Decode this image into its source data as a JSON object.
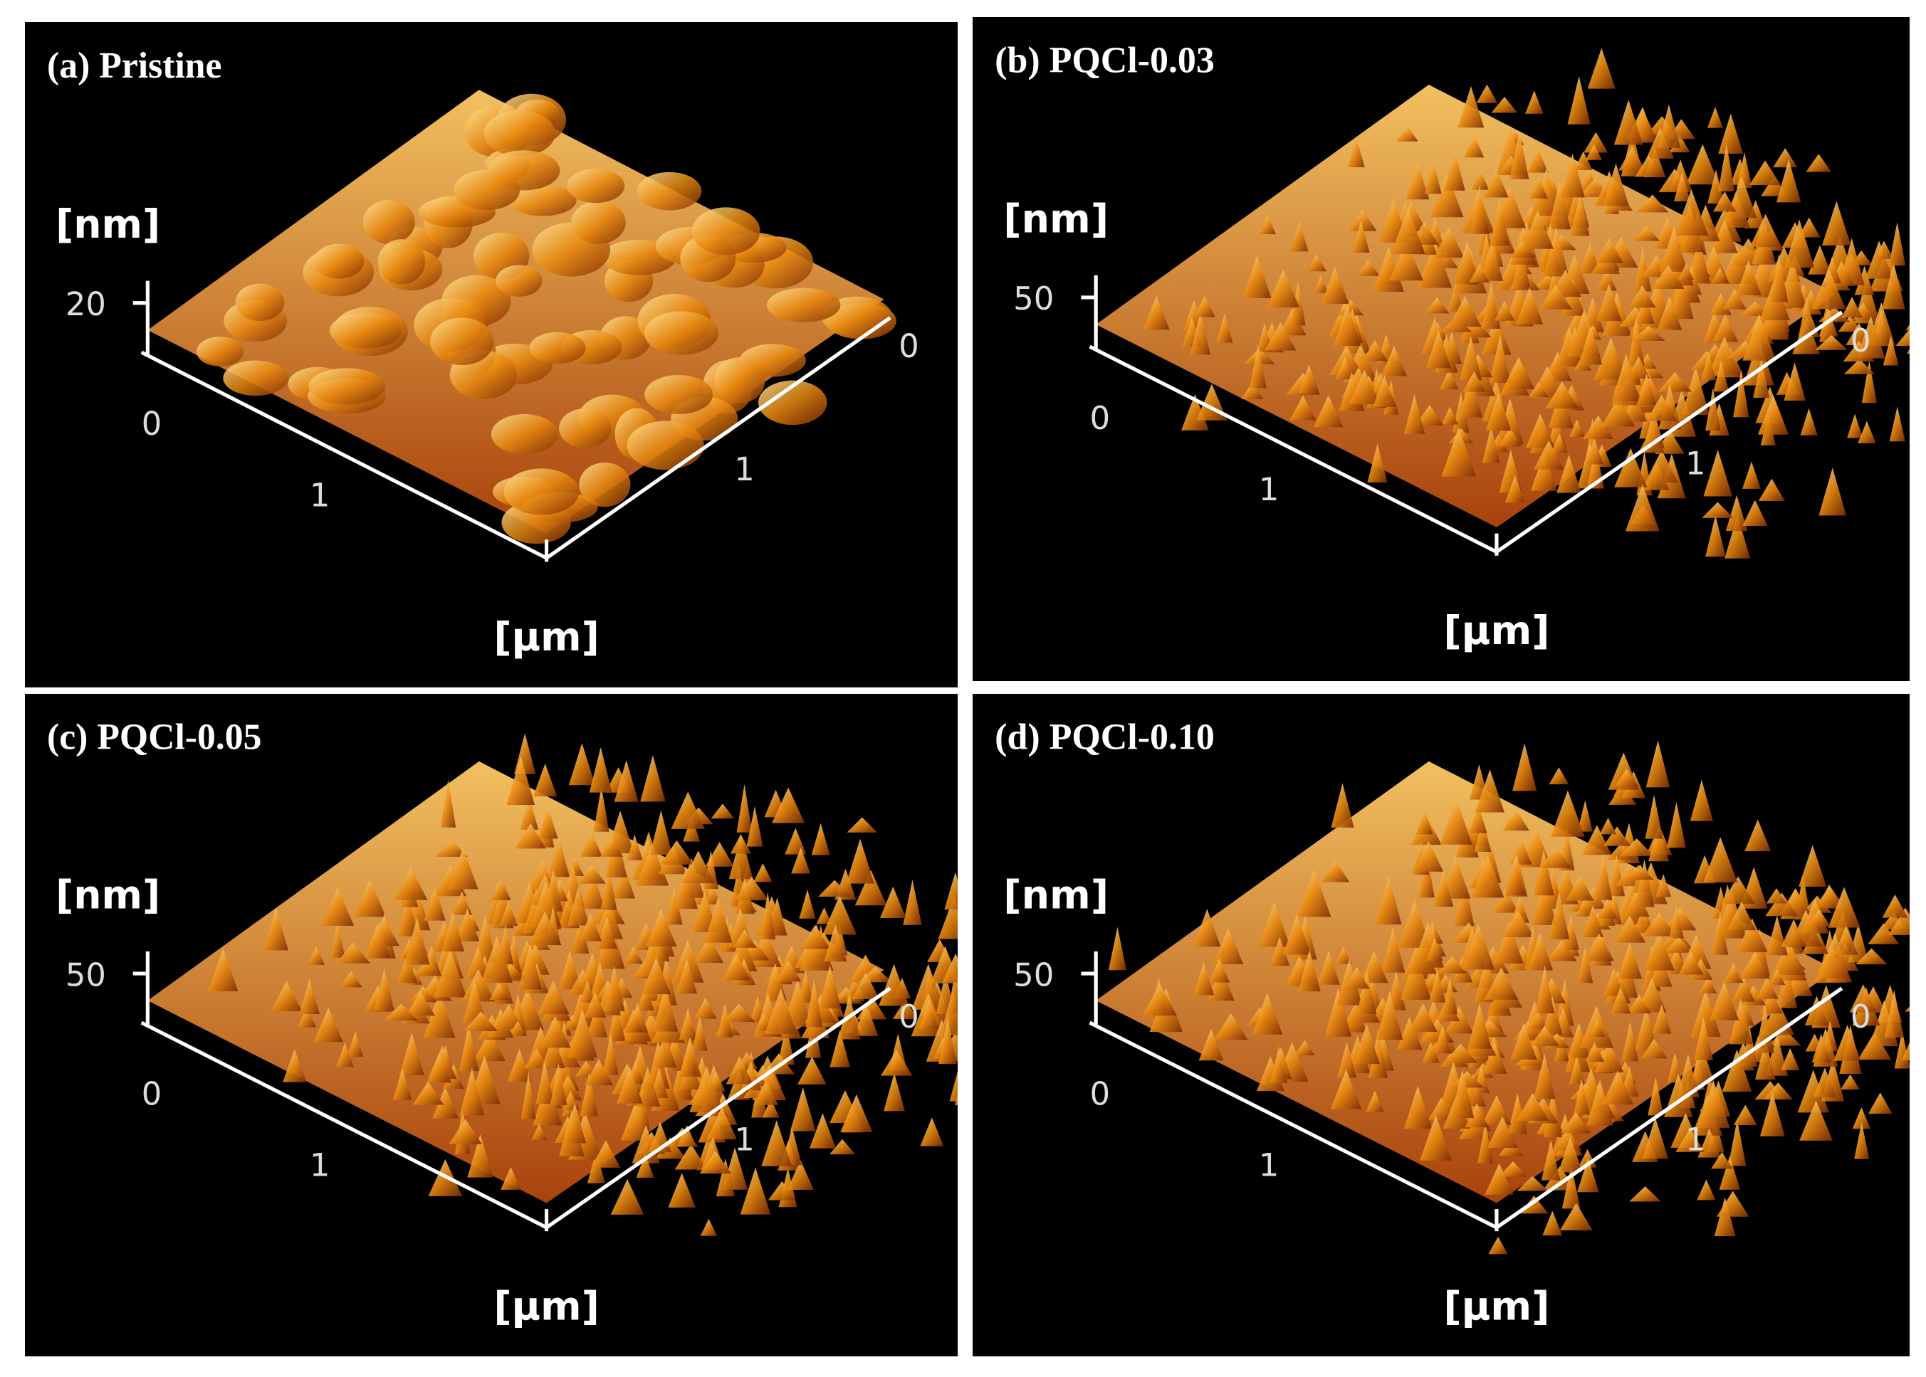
{
  "panels": [
    {
      "label": "(a) Pristine",
      "z_unit": "[nm]",
      "z_tick": 20,
      "xy_unit": "[µm]",
      "left_ticks": [
        0,
        1
      ],
      "right_ticks": [
        0,
        1
      ]
    },
    {
      "label": "(b) PQCl-0.03",
      "z_unit": "[nm]",
      "z_tick": 50,
      "xy_unit": "[µm]",
      "left_ticks": [
        0,
        1
      ],
      "right_ticks": [
        0,
        1
      ]
    },
    {
      "label": "(c) PQCl-0.05",
      "z_unit": "[nm]",
      "z_tick": 50,
      "xy_unit": "[µm]",
      "left_ticks": [
        0,
        1
      ],
      "right_ticks": [
        0,
        1
      ]
    },
    {
      "label": "(d) PQCl-0.10",
      "z_unit": "[nm]",
      "z_tick": 50,
      "xy_unit": "[µm]",
      "left_ticks": [
        0,
        1
      ],
      "right_ticks": [
        0,
        1
      ]
    }
  ]
}
